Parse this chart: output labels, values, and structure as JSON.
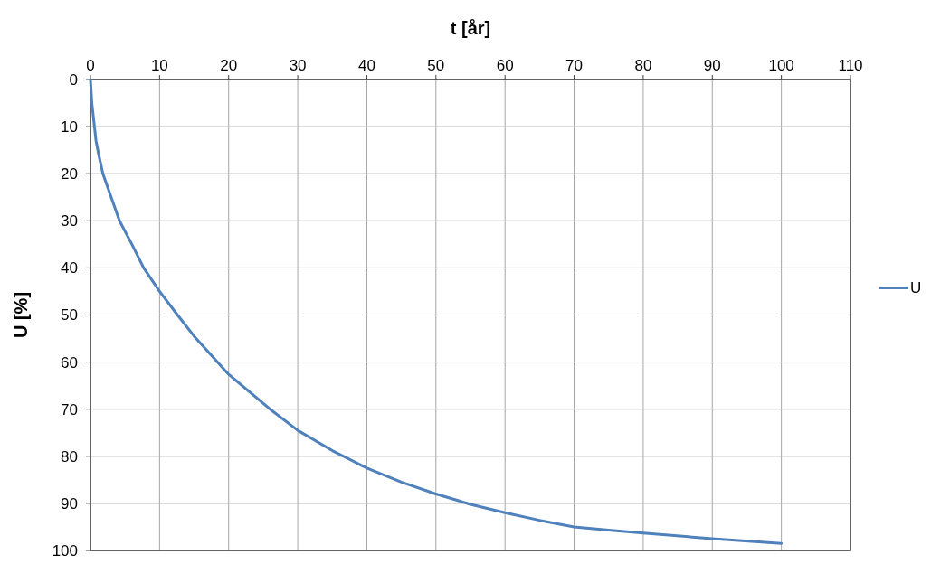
{
  "chart_data": {
    "type": "line",
    "xlabel": "t [år]",
    "ylabel": "U [%]",
    "xlim": [
      0,
      110
    ],
    "xticks": [
      0,
      10,
      20,
      30,
      40,
      50,
      60,
      70,
      80,
      90,
      100,
      110
    ],
    "ylim": [
      100,
      0
    ],
    "yticks": [
      0,
      10,
      20,
      30,
      40,
      50,
      60,
      70,
      80,
      90,
      100
    ],
    "grid": true,
    "legend": "right",
    "marker": "none",
    "line_style": "solid",
    "x": [
      0,
      0.2,
      0.5,
      0.8,
      1.2,
      1.8,
      3,
      4.2,
      6,
      7.7,
      10,
      12.6,
      15,
      20,
      26,
      30,
      35,
      40,
      45,
      50,
      55,
      60,
      65,
      70,
      75,
      80,
      90,
      100
    ],
    "series": [
      {
        "name": "U",
        "color": "#4f81bd",
        "values": [
          0,
          5,
          9,
          13,
          16,
          20,
          25,
          30,
          35,
          40,
          45,
          50,
          54.5,
          62.6,
          70,
          74.5,
          78.8,
          82.5,
          85.5,
          88,
          90.2,
          92,
          93.6,
          95,
          95.7,
          96.3,
          97.5,
          98.5
        ]
      }
    ]
  }
}
